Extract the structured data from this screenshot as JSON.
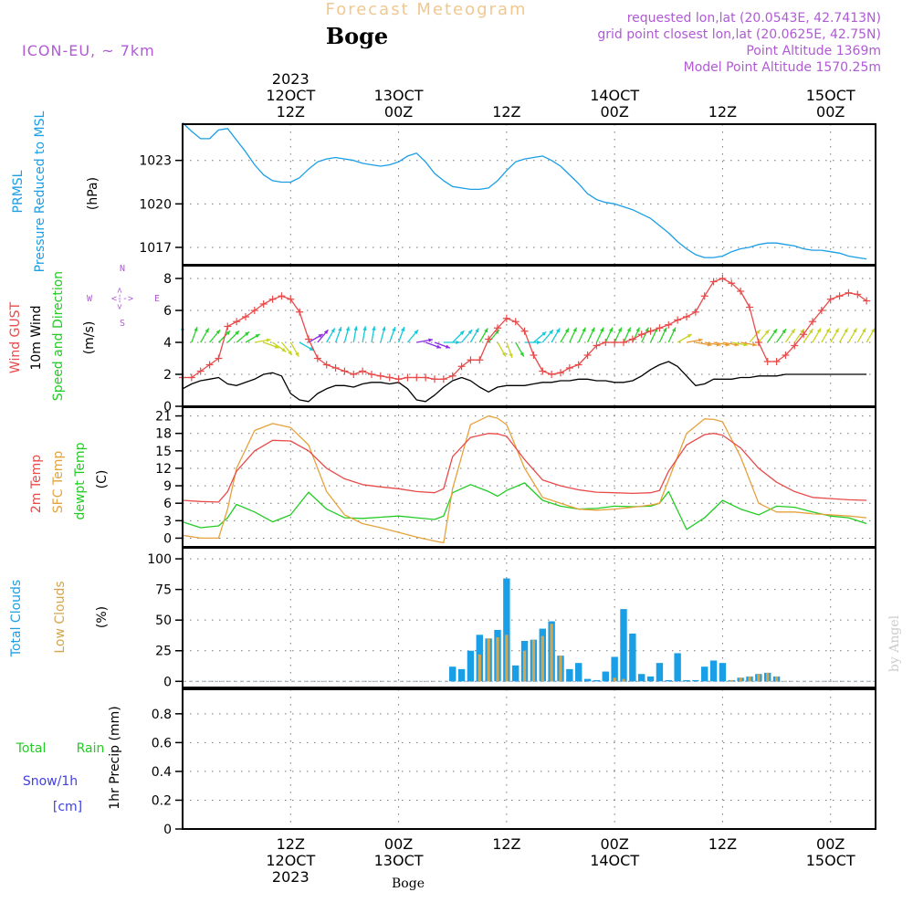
{
  "header": {
    "title": "Forecast Meteogram",
    "station": "Boge",
    "model": "ICON-EU, ~ 7km",
    "requested": "requested lon,lat (20.0543E, 42.7413N)",
    "grid_point": "grid point closest lon,lat (20.0625E, 42.75N)",
    "point_altitude": "Point Altitude 1369m",
    "model_altitude": "Model Point Altitude 1570.25m"
  },
  "colors": {
    "pressure": "#1a9ee6",
    "gust": "#e84a4a",
    "wind": "#000000",
    "temp2m": "#e84a4a",
    "sfc": "#e6a23c",
    "dewpt": "#22cc22",
    "total_clouds": "#1a9ee6",
    "low_clouds": "#d4a54a",
    "rain": "#22cc22",
    "snow": "#4040e0",
    "purple": "#b05ad6",
    "watermark": "#cccccc"
  },
  "top_axis": [
    {
      "line1": "2023",
      "line2": "12OCT",
      "line3": "12Z",
      "t": 12
    },
    {
      "line1": "",
      "line2": "13OCT",
      "line3": "00Z",
      "t": 24
    },
    {
      "line1": "",
      "line2": "",
      "line3": "12Z",
      "t": 36
    },
    {
      "line1": "",
      "line2": "14OCT",
      "line3": "00Z",
      "t": 48
    },
    {
      "line1": "",
      "line2": "",
      "line3": "12Z",
      "t": 60
    },
    {
      "line1": "",
      "line2": "15OCT",
      "line3": "00Z",
      "t": 72
    }
  ],
  "bottom_axis": [
    {
      "line1": "12Z",
      "line2": "12OCT",
      "line3": "2023",
      "t": 12
    },
    {
      "line1": "00Z",
      "line2": "13OCT",
      "line3": "",
      "t": 24
    },
    {
      "line1": "12Z",
      "line2": "",
      "line3": "",
      "t": 36
    },
    {
      "line1": "00Z",
      "line2": "14OCT",
      "line3": "",
      "t": 48
    },
    {
      "line1": "12Z",
      "line2": "",
      "line3": "",
      "t": 60
    },
    {
      "line1": "00Z",
      "line2": "15OCT",
      "line3": "",
      "t": 72
    }
  ],
  "bottom_station": "Boge",
  "watermark": "by Angel",
  "time_range": [
    0,
    77
  ],
  "panels": {
    "pressure": {
      "label1": "PRMSL",
      "label2": "Pressure Reduced to MSL",
      "unit": "(hPa)"
    },
    "wind": {
      "label_gust": "Wind GUST",
      "label_wind": "10m Wind",
      "label_dir": "Speed and Direction",
      "unit": "(m/s)",
      "compass_n": "N",
      "compass_s": "S",
      "compass_w": "W",
      "compass_e": "E",
      "compass_ns": "<-->",
      "compass_we": "<-->"
    },
    "temp": {
      "label_2m": "2m Temp",
      "label_sfc": "SFC Temp",
      "label_dew": "dewpt Temp",
      "unit": "(C)"
    },
    "clouds": {
      "label_total": "Total Clouds",
      "label_low": "Low Clouds",
      "unit": "(%)"
    },
    "precip": {
      "label_rain1": "Total",
      "label_rain2": "Rain",
      "label_snow": "Snow/1h",
      "label_cm": "[cm]",
      "unit": "1hr Precip (mm)"
    }
  },
  "chart_data": [
    {
      "type": "line",
      "name": "PRMSL",
      "ylabel": "(hPa)",
      "ylim": [
        1015.8,
        1025.5
      ],
      "yticks": [
        1017,
        1020,
        1023
      ],
      "grid": true,
      "x": [
        0,
        1,
        2,
        3,
        4,
        5,
        6,
        7,
        8,
        9,
        10,
        11,
        12,
        13,
        14,
        15,
        16,
        17,
        18,
        19,
        20,
        21,
        22,
        23,
        24,
        25,
        26,
        27,
        28,
        29,
        30,
        31,
        32,
        33,
        34,
        35,
        36,
        37,
        38,
        39,
        40,
        41,
        42,
        43,
        44,
        45,
        46,
        47,
        48,
        49,
        50,
        51,
        52,
        53,
        54,
        55,
        56,
        57,
        58,
        59,
        60,
        61,
        62,
        63,
        64,
        65,
        66,
        67,
        68,
        69,
        70,
        71,
        72,
        73,
        74,
        75,
        76
      ],
      "series": [
        {
          "values": [
            1025.6,
            1025.0,
            1024.5,
            1024.5,
            1025.1,
            1025.2,
            1024.4,
            1023.6,
            1022.7,
            1022.0,
            1021.6,
            1021.5,
            1021.5,
            1021.8,
            1022.4,
            1022.9,
            1023.1,
            1023.2,
            1023.1,
            1023.0,
            1022.8,
            1022.7,
            1022.6,
            1022.7,
            1022.9,
            1023.3,
            1023.5,
            1022.9,
            1022.1,
            1021.6,
            1021.2,
            1021.1,
            1021.0,
            1021.0,
            1021.1,
            1021.6,
            1022.3,
            1022.9,
            1023.1,
            1023.2,
            1023.3,
            1023.0,
            1022.6,
            1022.0,
            1021.4,
            1020.7,
            1020.3,
            1020.1,
            1020.0,
            1019.8,
            1019.6,
            1019.3,
            1019.0,
            1018.5,
            1018.0,
            1017.4,
            1016.9,
            1016.5,
            1016.3,
            1016.3,
            1016.4,
            1016.7,
            1016.9,
            1017.0,
            1017.2,
            1017.3,
            1017.3,
            1017.2,
            1017.1,
            1016.9,
            1016.8,
            1016.8,
            1016.7,
            1016.6,
            1016.4,
            1016.3,
            1016.2
          ]
        }
      ]
    },
    {
      "type": "line",
      "name": "Wind",
      "ylabel": "(m/s)",
      "ylim": [
        0,
        8.8
      ],
      "yticks": [
        0,
        2,
        4,
        6,
        8
      ],
      "grid": true,
      "x": [
        0,
        1,
        2,
        3,
        4,
        5,
        6,
        7,
        8,
        9,
        10,
        11,
        12,
        13,
        14,
        15,
        16,
        17,
        18,
        19,
        20,
        21,
        22,
        23,
        24,
        25,
        26,
        27,
        28,
        29,
        30,
        31,
        32,
        33,
        34,
        35,
        36,
        37,
        38,
        39,
        40,
        41,
        42,
        43,
        44,
        45,
        46,
        47,
        48,
        49,
        50,
        51,
        52,
        53,
        54,
        55,
        56,
        57,
        58,
        59,
        60,
        61,
        62,
        63,
        64,
        65,
        66,
        67,
        68,
        69,
        70,
        71,
        72,
        73,
        74,
        75,
        76
      ],
      "series": [
        {
          "name": "Wind GUST",
          "values": [
            1.8,
            1.8,
            2.2,
            2.6,
            3.0,
            5.0,
            5.3,
            5.6,
            6.0,
            6.4,
            6.7,
            6.9,
            6.7,
            5.9,
            4.2,
            3.0,
            2.6,
            2.4,
            2.2,
            2.0,
            2.2,
            2.0,
            1.9,
            1.8,
            1.7,
            1.8,
            1.8,
            1.8,
            1.7,
            1.7,
            1.9,
            2.5,
            2.9,
            2.9,
            4.2,
            4.9,
            5.5,
            5.3,
            4.7,
            3.2,
            2.2,
            2.0,
            2.1,
            2.4,
            2.6,
            3.2,
            3.8,
            4.0,
            4.0,
            4.0,
            4.2,
            4.5,
            4.7,
            4.9,
            5.1,
            5.4,
            5.6,
            5.9,
            6.9,
            7.8,
            8.0,
            7.7,
            7.2,
            6.2,
            4.0,
            2.8,
            2.8,
            3.2,
            3.8,
            4.5,
            5.3,
            6.0,
            6.7,
            6.9,
            7.1,
            7.0,
            6.6
          ]
        },
        {
          "name": "10m Wind",
          "values": [
            1.1,
            1.4,
            1.6,
            1.7,
            1.8,
            1.4,
            1.3,
            1.5,
            1.7,
            2.0,
            2.1,
            1.9,
            0.8,
            0.4,
            0.3,
            0.8,
            1.1,
            1.3,
            1.3,
            1.2,
            1.4,
            1.5,
            1.5,
            1.4,
            1.5,
            1.1,
            0.4,
            0.3,
            0.7,
            1.2,
            1.6,
            1.8,
            1.6,
            1.2,
            0.9,
            1.2,
            1.3,
            1.3,
            1.3,
            1.4,
            1.5,
            1.5,
            1.6,
            1.6,
            1.7,
            1.7,
            1.6,
            1.6,
            1.5,
            1.5,
            1.6,
            1.9,
            2.3,
            2.6,
            2.8,
            2.5,
            1.9,
            1.3,
            1.4,
            1.7,
            1.7,
            1.7,
            1.8,
            1.8,
            1.9,
            1.9,
            1.9,
            2.0,
            2.0,
            2.0,
            2.0,
            2.0,
            2.0,
            2.0,
            2.0,
            2.0,
            2.0
          ]
        }
      ]
    },
    {
      "type": "line",
      "name": "Temperature",
      "ylabel": "(C)",
      "ylim": [
        -1.5,
        22.5
      ],
      "yticks": [
        0,
        3,
        6,
        9,
        12,
        15,
        18,
        21
      ],
      "grid": true,
      "x": [
        0,
        2,
        4,
        5,
        6,
        8,
        10,
        12,
        14,
        16,
        18,
        20,
        22,
        24,
        26,
        28,
        29,
        30,
        32,
        34,
        35,
        36,
        38,
        40,
        42,
        44,
        46,
        48,
        50,
        52,
        53,
        54,
        56,
        58,
        59,
        60,
        62,
        64,
        66,
        68,
        70,
        72,
        74,
        76
      ],
      "series": [
        {
          "name": "2m Temp",
          "values": [
            6.5,
            6.3,
            6.2,
            8.0,
            11.5,
            15.0,
            16.8,
            16.7,
            15.0,
            12.0,
            10.2,
            9.2,
            8.8,
            8.5,
            8.0,
            7.8,
            8.5,
            14.0,
            17.3,
            18.0,
            17.9,
            17.5,
            13.5,
            10.0,
            9.0,
            8.3,
            7.9,
            7.8,
            7.7,
            7.8,
            8.2,
            11.5,
            16.0,
            17.8,
            18.0,
            17.7,
            15.5,
            12.0,
            9.6,
            8.0,
            7.0,
            6.8,
            6.6,
            6.5
          ]
        },
        {
          "name": "SFC Temp",
          "values": [
            0.5,
            0.0,
            0.0,
            5.0,
            12.0,
            18.5,
            19.7,
            19.0,
            16.0,
            8.0,
            4.0,
            2.5,
            1.8,
            1.0,
            0.2,
            -0.5,
            -0.8,
            8.5,
            19.5,
            21.0,
            20.6,
            19.5,
            12.0,
            7.0,
            6.0,
            5.0,
            4.8,
            5.0,
            5.3,
            5.7,
            6.0,
            10.0,
            18.0,
            20.5,
            20.4,
            20.0,
            14.0,
            6.0,
            4.5,
            4.5,
            4.2,
            4.0,
            3.8,
            3.5
          ]
        },
        {
          "name": "dewpt Temp",
          "values": [
            2.8,
            1.8,
            2.1,
            3.5,
            5.8,
            4.5,
            2.8,
            4.0,
            7.9,
            5.0,
            3.5,
            3.4,
            3.6,
            3.8,
            3.5,
            3.2,
            3.8,
            7.8,
            9.2,
            8.0,
            7.2,
            8.2,
            9.5,
            6.5,
            5.5,
            5.0,
            5.1,
            5.5,
            5.4,
            5.5,
            6.0,
            8.0,
            1.5,
            3.5,
            5.0,
            6.5,
            5.0,
            4.0,
            5.5,
            5.3,
            4.5,
            3.8,
            3.5,
            2.5
          ]
        }
      ]
    },
    {
      "type": "bar",
      "name": "Clouds",
      "ylabel": "(%)",
      "ylim": [
        -5,
        109
      ],
      "yticks": [
        0,
        25,
        50,
        75,
        100
      ],
      "grid": true,
      "x": [
        30,
        31,
        32,
        33,
        34,
        35,
        36,
        37,
        38,
        39,
        40,
        41,
        42,
        43,
        44,
        45,
        46,
        47,
        48,
        49,
        50,
        51,
        52,
        53,
        54,
        55,
        56,
        57,
        58,
        59,
        60,
        61,
        62,
        63,
        64,
        65,
        66
      ],
      "series": [
        {
          "name": "Total Clouds",
          "values": [
            12,
            10,
            25,
            38,
            35,
            42,
            84,
            13,
            33,
            34,
            43,
            49,
            21,
            10,
            15,
            2,
            1,
            8,
            20,
            59,
            39,
            6,
            4,
            15,
            1,
            23,
            1,
            1,
            12,
            17,
            15,
            1,
            3,
            4,
            6,
            7,
            4
          ]
        },
        {
          "name": "Low Clouds",
          "values": [
            0,
            0,
            0,
            22,
            35,
            36,
            38,
            0,
            25,
            34,
            37,
            47,
            21,
            0,
            0,
            0,
            0,
            0,
            3,
            2,
            0,
            0,
            0,
            0,
            0,
            0,
            0,
            0,
            0,
            0,
            0,
            1,
            3,
            4,
            6,
            7,
            4
          ]
        }
      ]
    },
    {
      "type": "bar",
      "name": "Precipitation",
      "ylabel": "1hr Precip (mm)",
      "ylim": [
        0,
        0.97
      ],
      "yticks": [
        0,
        0.2,
        0.4,
        0.6,
        0.8
      ],
      "grid": true,
      "x": [],
      "series": [
        {
          "name": "Total Rain",
          "values": []
        },
        {
          "name": "Snow/1h [cm]",
          "values": []
        }
      ]
    }
  ],
  "wind_barbs": {
    "x": [
      0,
      1,
      2,
      3,
      4,
      5,
      6,
      7,
      8,
      9,
      10,
      11,
      12,
      13,
      14,
      15,
      16,
      17,
      18,
      19,
      20,
      21,
      22,
      23,
      24,
      25,
      26,
      27,
      28,
      29,
      30,
      31,
      32,
      33,
      34,
      35,
      36,
      37,
      38,
      39,
      40,
      41,
      42,
      43,
      44,
      45,
      46,
      47,
      48,
      49,
      50,
      51,
      52,
      53,
      54,
      55,
      56,
      57,
      58,
      59,
      60,
      61,
      62,
      63,
      64,
      65,
      66,
      67,
      68,
      69,
      70,
      71,
      72,
      73,
      74,
      75,
      76
    ],
    "direction_deg": [
      0,
      20,
      30,
      40,
      45,
      45,
      50,
      60,
      80,
      110,
      125,
      140,
      150,
      120,
      60,
      40,
      30,
      20,
      15,
      10,
      10,
      10,
      15,
      20,
      20,
      40,
      80,
      110,
      110,
      90,
      45,
      40,
      30,
      30,
      40,
      150,
      160,
      150,
      90,
      50,
      40,
      30,
      30,
      25,
      25,
      25,
      25,
      25,
      25,
      25,
      25,
      25,
      25,
      25,
      25,
      60,
      80,
      100,
      100,
      100,
      100,
      100,
      100,
      40,
      40,
      35,
      35,
      35,
      35,
      35,
      30,
      30,
      30,
      30,
      30,
      30,
      30
    ],
    "color_class": [
      "cyan",
      "green",
      "green",
      "green",
      "green",
      "green",
      "green",
      "green",
      "yellow",
      "yellow",
      "yellow",
      "yellow",
      "yellow",
      "cyan",
      "purple",
      "purple",
      "cyan",
      "cyan",
      "cyan",
      "cyan",
      "cyan",
      "cyan",
      "cyan",
      "cyan",
      "cyan",
      "cyan",
      "purple",
      "purple",
      "purple",
      "cyan",
      "cyan",
      "cyan",
      "cyan",
      "green",
      "green",
      "yellow",
      "yellow",
      "green",
      "cyan",
      "cyan",
      "cyan",
      "cyan",
      "green",
      "green",
      "green",
      "green",
      "green",
      "green",
      "green",
      "green",
      "green",
      "green",
      "green",
      "green",
      "green",
      "yellow",
      "orange",
      "orange",
      "orange",
      "orange",
      "orange",
      "yellow",
      "orange",
      "yellow",
      "yellow",
      "green",
      "green",
      "yellow",
      "yellow",
      "yellow",
      "yellow",
      "yellow",
      "yellow",
      "yellow",
      "yellow",
      "yellow",
      "yellow"
    ]
  }
}
